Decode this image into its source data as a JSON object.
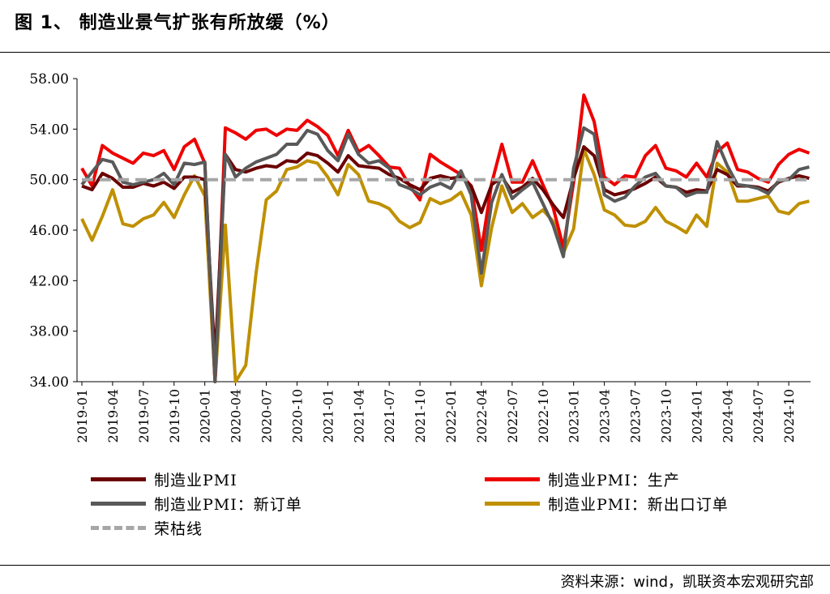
{
  "title": "图 1、 制造业景气扩张有所放缓（%）",
  "source": "资料来源：wind，凯联资本宏观研究部",
  "chart_data": {
    "type": "line",
    "ylim": [
      34,
      58
    ],
    "y_ticks": [
      "34.00",
      "38.00",
      "42.00",
      "46.00",
      "50.00",
      "54.00",
      "58.00"
    ],
    "x_ticks": [
      "2019-01",
      "2019-04",
      "2019-07",
      "2019-10",
      "2020-01",
      "2020-04",
      "2020-07",
      "2020-10",
      "2021-01",
      "2021-04",
      "2021-07",
      "2021-10",
      "2022-01",
      "2022-04",
      "2022-07",
      "2022-10",
      "2023-01",
      "2023-04",
      "2023-07",
      "2023-10",
      "2024-01",
      "2024-04",
      "2024-07",
      "2024-10"
    ],
    "x_start": "2019-01",
    "x_end": "2024-12",
    "legend_placement": "bottom",
    "series": [
      {
        "name": "制造业PMI",
        "color": "#6b0000",
        "style": "solid",
        "values": [
          49.5,
          49.2,
          50.5,
          50.1,
          49.4,
          49.4,
          49.7,
          49.5,
          49.8,
          49.3,
          50.2,
          50.2,
          50.0,
          35.7,
          52.0,
          50.8,
          50.6,
          50.9,
          51.1,
          51.0,
          51.5,
          51.4,
          52.1,
          51.9,
          51.3,
          50.6,
          51.9,
          51.1,
          51.0,
          50.9,
          50.4,
          50.1,
          49.6,
          49.2,
          50.1,
          50.3,
          50.1,
          50.2,
          49.5,
          47.4,
          49.6,
          50.2,
          49.0,
          49.4,
          50.1,
          49.2,
          48.0,
          47.0,
          50.1,
          52.6,
          51.9,
          49.2,
          48.8,
          49.0,
          49.3,
          49.7,
          50.2,
          49.5,
          49.4,
          49.0,
          49.2,
          49.1,
          50.8,
          50.4,
          49.5,
          49.5,
          49.4,
          49.1,
          49.8,
          50.1,
          50.3,
          50.1
        ]
      },
      {
        "name": "制造业PMI：生产",
        "color": "#ee0000",
        "style": "solid",
        "values": [
          50.9,
          49.5,
          52.7,
          52.1,
          51.7,
          51.3,
          52.1,
          51.9,
          52.3,
          50.8,
          52.6,
          53.2,
          51.3,
          27.8,
          54.1,
          53.7,
          53.2,
          53.9,
          54.0,
          53.5,
          54.0,
          53.9,
          54.7,
          54.2,
          53.5,
          51.9,
          53.9,
          52.2,
          52.7,
          51.9,
          51.0,
          50.9,
          49.5,
          48.4,
          52.0,
          51.4,
          50.9,
          50.4,
          49.5,
          44.4,
          49.7,
          52.8,
          49.8,
          49.8,
          51.5,
          49.6,
          47.8,
          44.6,
          49.8,
          56.7,
          54.6,
          50.2,
          49.6,
          50.3,
          50.2,
          51.9,
          52.7,
          50.9,
          50.7,
          50.2,
          51.3,
          50.2,
          52.2,
          52.9,
          50.8,
          50.6,
          50.1,
          49.8,
          51.2,
          52.0,
          52.4,
          52.1
        ]
      },
      {
        "name": "制造业PMI：新订单",
        "color": "#595959",
        "style": "solid",
        "values": [
          49.6,
          50.6,
          51.6,
          51.4,
          49.8,
          49.6,
          49.8,
          50.0,
          50.5,
          49.6,
          51.3,
          51.2,
          51.4,
          29.3,
          52.0,
          50.2,
          50.9,
          51.4,
          51.7,
          52.0,
          52.8,
          52.8,
          53.9,
          53.6,
          52.3,
          51.5,
          53.6,
          52.0,
          51.3,
          51.5,
          50.9,
          49.6,
          49.3,
          48.8,
          49.4,
          49.7,
          49.3,
          50.7,
          48.8,
          42.6,
          48.2,
          50.4,
          48.5,
          49.2,
          49.8,
          48.1,
          46.4,
          43.9,
          50.9,
          54.1,
          53.6,
          48.8,
          48.3,
          48.6,
          49.5,
          50.2,
          50.5,
          49.5,
          49.4,
          48.7,
          49.0,
          49.0,
          53.0,
          51.1,
          49.6,
          49.5,
          49.3,
          48.9,
          49.9,
          50.0,
          50.8,
          51.0
        ]
      },
      {
        "name": "制造业PMI：新出口订单",
        "color": "#bf9000",
        "style": "solid",
        "values": [
          46.9,
          45.2,
          47.1,
          49.2,
          46.5,
          46.3,
          46.9,
          47.2,
          48.2,
          47.0,
          48.8,
          50.3,
          48.7,
          28.7,
          46.4,
          33.5,
          35.3,
          42.6,
          48.4,
          49.1,
          50.8,
          51.0,
          51.5,
          51.3,
          50.2,
          48.8,
          51.2,
          50.4,
          48.3,
          48.1,
          47.7,
          46.7,
          46.2,
          46.6,
          48.5,
          48.1,
          48.4,
          49.0,
          47.2,
          41.6,
          46.2,
          49.5,
          47.4,
          48.1,
          47.0,
          47.6,
          46.7,
          44.2,
          46.1,
          52.4,
          50.4,
          47.6,
          47.2,
          46.4,
          46.3,
          46.7,
          47.8,
          46.7,
          46.3,
          45.8,
          47.2,
          46.3,
          51.3,
          50.6,
          48.3,
          48.3,
          48.5,
          48.7,
          47.5,
          47.3,
          48.1,
          48.3
        ]
      },
      {
        "name": "荣枯线",
        "color": "#a6a6a6",
        "style": "dashed",
        "values": [
          50,
          50,
          50,
          50,
          50,
          50,
          50,
          50,
          50,
          50,
          50,
          50,
          50,
          50,
          50,
          50,
          50,
          50,
          50,
          50,
          50,
          50,
          50,
          50,
          50,
          50,
          50,
          50,
          50,
          50,
          50,
          50,
          50,
          50,
          50,
          50,
          50,
          50,
          50,
          50,
          50,
          50,
          50,
          50,
          50,
          50,
          50,
          50,
          50,
          50,
          50,
          50,
          50,
          50,
          50,
          50,
          50,
          50,
          50,
          50,
          50,
          50,
          50,
          50,
          50,
          50,
          50,
          50,
          50,
          50,
          50,
          50
        ]
      }
    ]
  }
}
